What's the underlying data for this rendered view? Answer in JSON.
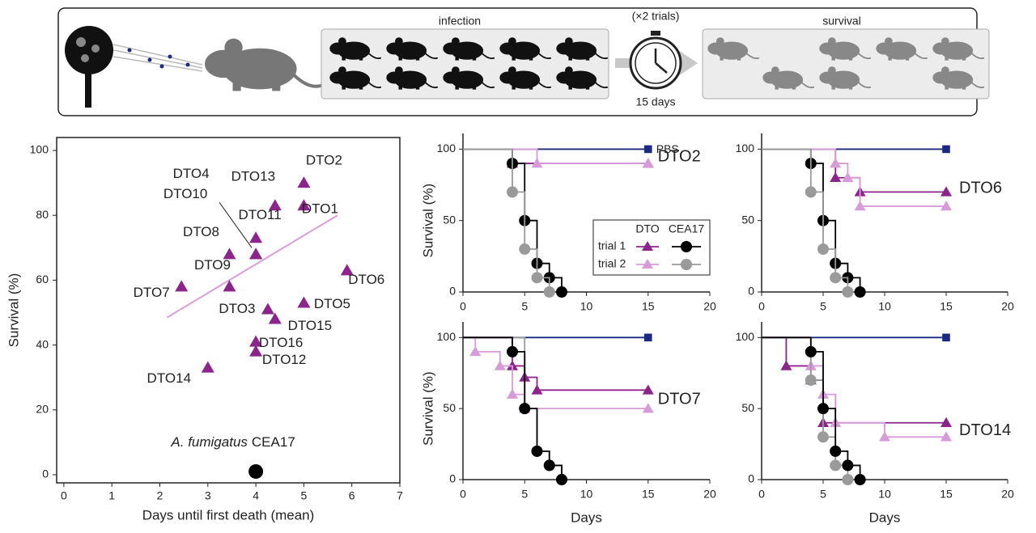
{
  "schematic": {
    "infection": "infection",
    "trials": "(×2 trials)",
    "duration": "15 days",
    "survival": "survival"
  },
  "chart_data": [
    {
      "type": "scatter",
      "xlabel": "Days until first death (mean)",
      "ylabel": "Survival (%)",
      "xlim": [
        -0.15,
        7
      ],
      "xticks": [
        0,
        1,
        2,
        3,
        4,
        5,
        6,
        7
      ],
      "ylim": [
        -2.5,
        104
      ],
      "yticks": [
        0,
        20,
        40,
        60,
        80,
        100
      ],
      "series": [
        {
          "color": "#8b258b",
          "marker": "triangle",
          "x": [
            5,
            4.4,
            5,
            4,
            3.45,
            4,
            4,
            3.45,
            2.45,
            5.9,
            4.25,
            5,
            4.4,
            4,
            4,
            3
          ],
          "y": [
            90,
            83,
            83,
            73,
            68,
            68,
            68,
            58,
            58,
            63,
            51,
            53,
            48,
            41,
            38,
            33
          ],
          "labels": [
            "DTO2",
            "DTO13",
            "DTO1",
            "DTO11",
            "DTO8",
            "DTO4",
            "DTO10",
            "DTO9",
            "DTO7",
            "DTO6",
            "DTO3",
            "DTO5",
            "DTO15",
            "DTO16",
            "DTO12",
            "DTO14"
          ]
        },
        {
          "color": "#000000",
          "marker": "circle",
          "x": [
            4
          ],
          "y": [
            1
          ],
          "label_species": "A. fumigatus",
          "label_strain": "CEA17"
        }
      ],
      "trendline": {
        "color": "#dc9ddc",
        "x": [
          2.15,
          5.7
        ],
        "y": [
          48.5,
          80
        ]
      }
    },
    {
      "type": "step",
      "strain_label": "DTO2",
      "ylabel": "Survival (%)",
      "xlim": [
        0,
        20
      ],
      "xticks": [
        0,
        5,
        10,
        15,
        20
      ],
      "ylim": [
        0,
        111
      ],
      "yticks": [
        0,
        50,
        100
      ],
      "legend": {
        "columns": [
          "DTO",
          "CEA17"
        ],
        "rows": [
          "trial 1",
          "trial 2"
        ]
      },
      "series": [
        {
          "name": "PBS",
          "color": "#1b2a80",
          "marker": "square",
          "x": [
            0,
            15
          ],
          "y": [
            100,
            100
          ]
        },
        {
          "color": "#8b258b",
          "marker": "triangle",
          "x": [
            0,
            4,
            15
          ],
          "y": [
            100,
            90,
            90
          ]
        },
        {
          "color": "#d79bd7",
          "marker": "triangle",
          "x": [
            0,
            6,
            15
          ],
          "y": [
            100,
            90,
            90
          ]
        },
        {
          "color": "#000000",
          "marker": "circle",
          "x": [
            0,
            4,
            5,
            6,
            7,
            8
          ],
          "y": [
            100,
            90,
            50,
            20,
            10,
            0
          ]
        },
        {
          "color": "#9a9a9a",
          "marker": "circle",
          "x": [
            0,
            4,
            5,
            6,
            7
          ],
          "y": [
            100,
            70,
            30,
            10,
            0
          ]
        }
      ]
    },
    {
      "type": "step",
      "strain_label": "DTO6",
      "xlim": [
        0,
        20
      ],
      "xticks": [
        0,
        5,
        10,
        15,
        20
      ],
      "ylim": [
        0,
        111
      ],
      "yticks": [
        0,
        50,
        100
      ],
      "series": [
        {
          "color": "#1b2a80",
          "marker": "square",
          "x": [
            0,
            15
          ],
          "y": [
            100,
            100
          ]
        },
        {
          "color": "#8b258b",
          "marker": "triangle",
          "x": [
            0,
            6,
            8,
            15
          ],
          "y": [
            100,
            80,
            70,
            70
          ]
        },
        {
          "color": "#d79bd7",
          "marker": "triangle",
          "x": [
            0,
            6,
            7,
            8,
            15
          ],
          "y": [
            100,
            90,
            80,
            60,
            60
          ]
        },
        {
          "color": "#000000",
          "marker": "circle",
          "x": [
            0,
            4,
            5,
            6,
            7,
            8
          ],
          "y": [
            100,
            90,
            50,
            20,
            10,
            0
          ]
        },
        {
          "color": "#9a9a9a",
          "marker": "circle",
          "x": [
            0,
            4,
            5,
            6,
            7
          ],
          "y": [
            100,
            70,
            30,
            10,
            0
          ]
        }
      ]
    },
    {
      "type": "step",
      "strain_label": "DTO7",
      "xlabel": "Days",
      "ylabel": "Survival (%)",
      "xlim": [
        0,
        20
      ],
      "xticks": [
        0,
        5,
        10,
        15,
        20
      ],
      "ylim": [
        0,
        111
      ],
      "yticks": [
        0,
        50,
        100
      ],
      "series": [
        {
          "color": "#1b2a80",
          "marker": "square",
          "x": [
            0,
            15
          ],
          "y": [
            100,
            100
          ]
        },
        {
          "color": "#8b258b",
          "marker": "triangle",
          "x": [
            0,
            4,
            5,
            6,
            15
          ],
          "y": [
            100,
            80,
            72,
            63,
            63
          ]
        },
        {
          "color": "#d79bd7",
          "marker": "triangle",
          "x": [
            0,
            1,
            3,
            4,
            5,
            15
          ],
          "y": [
            100,
            90,
            80,
            60,
            50,
            50
          ]
        },
        {
          "color": "#9a9a9a",
          "marker": "circle",
          "x": [
            0,
            5,
            6,
            7,
            8
          ],
          "y": [
            100,
            50,
            20,
            10,
            0
          ]
        },
        {
          "color": "#000000",
          "marker": "circle",
          "x": [
            0,
            4,
            5,
            6,
            7,
            8
          ],
          "y": [
            100,
            90,
            50,
            20,
            10,
            0
          ]
        }
      ]
    },
    {
      "type": "step",
      "strain_label": "DTO14",
      "xlabel": "Days",
      "xlim": [
        0,
        20
      ],
      "xticks": [
        0,
        5,
        10,
        15,
        20
      ],
      "ylim": [
        0,
        111
      ],
      "yticks": [
        0,
        50,
        100
      ],
      "series": [
        {
          "color": "#1b2a80",
          "marker": "square",
          "x": [
            0,
            15
          ],
          "y": [
            100,
            100
          ]
        },
        {
          "color": "#8b258b",
          "marker": "triangle",
          "x": [
            0,
            2,
            4,
            5,
            15
          ],
          "y": [
            100,
            80,
            70,
            40,
            40
          ]
        },
        {
          "color": "#d79bd7",
          "marker": "triangle",
          "x": [
            0,
            4,
            5,
            6,
            10,
            15
          ],
          "y": [
            100,
            80,
            60,
            40,
            30,
            30
          ]
        },
        {
          "color": "#9a9a9a",
          "marker": "circle",
          "x": [
            0,
            4,
            5,
            6,
            7
          ],
          "y": [
            100,
            70,
            30,
            10,
            0
          ]
        },
        {
          "color": "#000000",
          "marker": "circle",
          "x": [
            0,
            4,
            5,
            6,
            7,
            8
          ],
          "y": [
            100,
            90,
            50,
            20,
            10,
            0
          ]
        }
      ]
    }
  ]
}
